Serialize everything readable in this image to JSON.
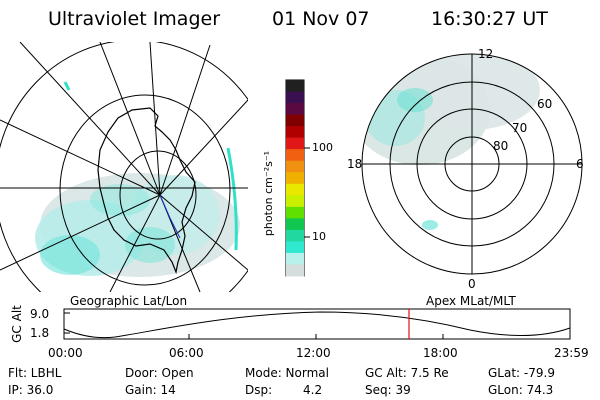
{
  "header": {
    "instrument": "Ultraviolet Imager",
    "date": "01 Nov 07",
    "time": "16:30:27 UT"
  },
  "left_panel": {
    "caption": "Geographic Lat/Lon"
  },
  "right_panel": {
    "caption": "Apex MLat/MLT",
    "mlt_labels": [
      "12",
      "18",
      "6",
      "0"
    ],
    "lat_labels": [
      "60",
      "70",
      "80"
    ]
  },
  "colorbar": {
    "unit_label": "photon cm⁻²s⁻¹",
    "ticks": [
      "100",
      "10"
    ],
    "colors": [
      "#202020",
      "#3a1050",
      "#5a0a40",
      "#800000",
      "#b00000",
      "#e01818",
      "#f06010",
      "#f09010",
      "#f0b000",
      "#e8e800",
      "#c8f000",
      "#60e000",
      "#10c850",
      "#20d8a0",
      "#30e8d0",
      "#b8f0ec",
      "#d6dedd"
    ]
  },
  "altitude_plot": {
    "ylabel": "GC Alt",
    "y_ticks": [
      "9.0",
      "1.8"
    ],
    "x_ticks": [
      "00:00",
      "06:00",
      "12:00",
      "18:00",
      "23:59"
    ],
    "current_time_marker_color": "#e01010"
  },
  "status": {
    "filter": "Flt: LBHL",
    "door": "Door: Open",
    "mode": "Mode: Normal",
    "gc_alt": "GC Alt: 7.5 Re",
    "glat": "GLat: -79.9",
    "ip": "IP: 36.0",
    "gain": "Gain: 14",
    "dsp_label": "Dsp:",
    "dsp_value": "4.2",
    "seq": "Seq: 39",
    "glon": "GLon:  74.3"
  }
}
